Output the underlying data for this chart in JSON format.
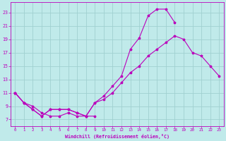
{
  "xlabel": "Windchill (Refroidissement éolien,°C)",
  "xlim": [
    -0.5,
    23.5
  ],
  "ylim": [
    6.0,
    24.5
  ],
  "yticks": [
    7,
    9,
    11,
    13,
    15,
    17,
    19,
    21,
    23
  ],
  "xticks": [
    0,
    1,
    2,
    3,
    4,
    5,
    6,
    7,
    8,
    9,
    10,
    11,
    12,
    13,
    14,
    15,
    16,
    17,
    18,
    19,
    20,
    21,
    22,
    23
  ],
  "bg_color": "#c0eaea",
  "grid_color": "#a0d0d0",
  "line_color": "#bb00bb",
  "line1_x": [
    0,
    1,
    2,
    3,
    4,
    5,
    6,
    7,
    8,
    9,
    10,
    11,
    12,
    13,
    14,
    15,
    16,
    17,
    18,
    19,
    20,
    21,
    22,
    23
  ],
  "line1_y": [
    11,
    9.5,
    8.5,
    7.5,
    8.5,
    8.5,
    8.5,
    8.0,
    7.5,
    9.5,
    10.0,
    11.0,
    12.5,
    14.0,
    15.0,
    16.5,
    17.5,
    18.5,
    19.5,
    19.0,
    17.0,
    16.5,
    15.0,
    13.5
  ],
  "line2_x": [
    0,
    1,
    2,
    3,
    4,
    5,
    6,
    7,
    8,
    9,
    10,
    11,
    12,
    13,
    14,
    15,
    16,
    17,
    18
  ],
  "line2_y": [
    11,
    9.5,
    8.5,
    7.5,
    8.5,
    8.5,
    8.5,
    8.0,
    7.5,
    9.5,
    10.5,
    12.0,
    13.5,
    17.5,
    19.2,
    22.5,
    23.5,
    23.5,
    21.5
  ],
  "line3_x": [
    0,
    1,
    2,
    3,
    4,
    5,
    6,
    7,
    8,
    9
  ],
  "line3_y": [
    11,
    9.5,
    9.0,
    8.0,
    7.5,
    7.5,
    8.0,
    7.5,
    7.5,
    7.5
  ]
}
